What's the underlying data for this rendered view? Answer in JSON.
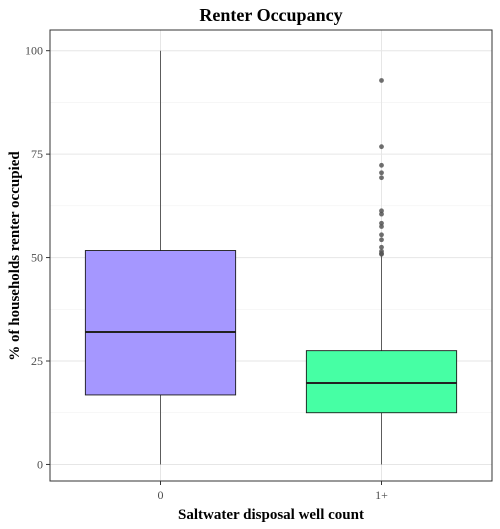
{
  "chart_data": {
    "type": "boxplot",
    "title": "Renter Occupancy",
    "xlabel": "Saltwater disposal well count",
    "ylabel": "% of households renter occupied",
    "categories": [
      "0",
      "1+"
    ],
    "ylim": [
      -4,
      105
    ],
    "yticks": [
      0,
      25,
      50,
      75,
      100
    ],
    "grid": true,
    "legend": "none",
    "boxes": [
      {
        "category": "0",
        "min": 0,
        "q1": 16.8,
        "median": 32,
        "q3": 51.7,
        "max": 100,
        "outliers": [],
        "fill": "#a597ff",
        "fill_opacity": 1
      },
      {
        "category": "1+",
        "min": 0,
        "q1": 12.5,
        "median": 19.7,
        "q3": 27.5,
        "max": 50.5,
        "outliers": [
          92.8,
          76.8,
          72.3,
          70.5,
          69.3,
          61.3,
          60.5,
          58.3,
          57.5,
          55.5,
          54.3,
          52.5,
          51.5,
          51.0,
          50.8
        ],
        "fill": "#46ffa4",
        "fill_opacity": 1
      }
    ]
  }
}
